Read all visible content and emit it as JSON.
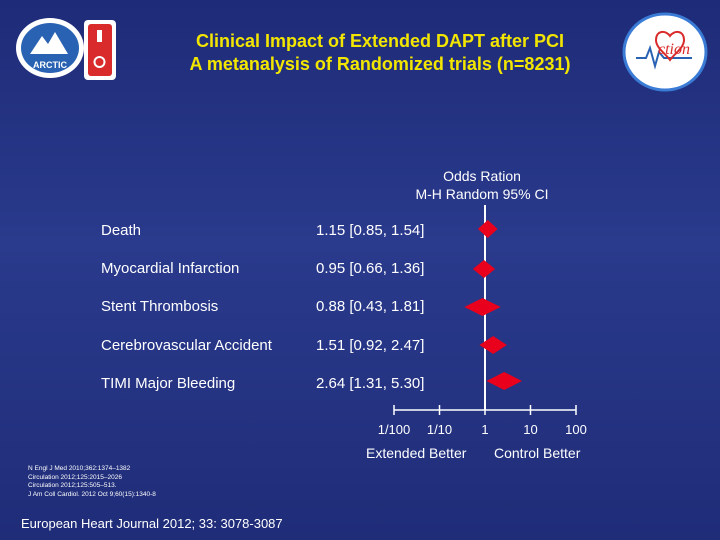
{
  "title": {
    "line1": "Clinical Impact of Extended DAPT after PCI",
    "line2": "A metanalysis of Randomized trials (n=8231)"
  },
  "logos": {
    "left_text": "ARCTIC",
    "right_text": "ction"
  },
  "ci_header": {
    "line1": "Odds Ration",
    "line2": "M-H Random 95% CI"
  },
  "chart_data": {
    "type": "forest",
    "scale": "log",
    "xlim": [
      0.01,
      100
    ],
    "reference_line": 1,
    "tick_values": [
      0.01,
      0.1,
      1,
      10,
      100
    ],
    "tick_labels": [
      "1/100",
      "1/10",
      "1",
      "10",
      "100"
    ],
    "left_label": "Extended Better",
    "right_label": "Control Better",
    "rows": [
      {
        "label": "Death",
        "or": 1.15,
        "ci": [
          0.85,
          1.54
        ],
        "text": "1.15 [0.85, 1.54]"
      },
      {
        "label": "Myocardial Infarction",
        "or": 0.95,
        "ci": [
          0.66,
          1.36
        ],
        "text": "0.95 [0.66, 1.36]"
      },
      {
        "label": "Stent Thrombosis",
        "or": 0.88,
        "ci": [
          0.43,
          1.81
        ],
        "text": "0.88 [0.43, 1.81]"
      },
      {
        "label": "Cerebrovascular Accident",
        "or": 1.51,
        "ci": [
          0.92,
          2.47
        ],
        "text": "1.51 [0.92, 2.47]"
      },
      {
        "label": "TIMI Major Bleeding",
        "or": 2.64,
        "ci": [
          1.31,
          5.3
        ],
        "text": "2.64 [1.31, 5.30]"
      }
    ],
    "marker_color": "#e8001c",
    "line_color": "#ffffff"
  },
  "references": [
    "N Engl J Med 2010;362:1374–1382",
    "Circulation 2012;125:2015–2026",
    "Circulation 2012;125:505–513.",
    "J Am Coll Cardiol. 2012 Oct 9;60(15):1340-8"
  ],
  "journal": "European Heart Journal 2012; 33: 3078-3087"
}
